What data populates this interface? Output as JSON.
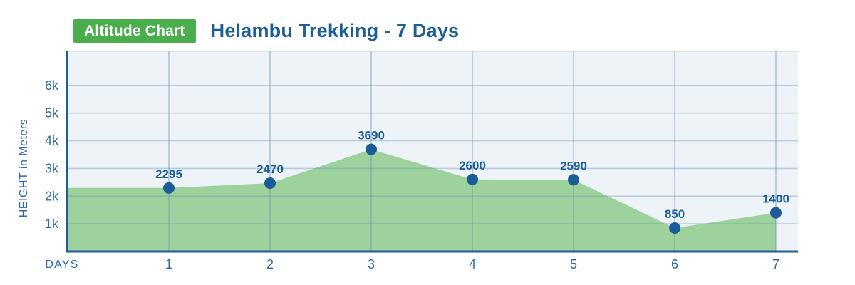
{
  "header": {
    "badge": "Altitude Chart",
    "title": "Helambu Trekking - 7 Days"
  },
  "chart_data": {
    "type": "area",
    "x": [
      1,
      2,
      3,
      4,
      5,
      6,
      7
    ],
    "series": [
      {
        "name": "Altitude",
        "values": [
          2295,
          2470,
          3690,
          2600,
          2590,
          850,
          1400
        ]
      }
    ],
    "point_labels": [
      "2295",
      "2470",
      "3690",
      "2600",
      "2590",
      "850",
      "1400"
    ],
    "xticks": [
      "1",
      "2",
      "3",
      "4",
      "5",
      "6",
      "7"
    ],
    "yticks": [
      {
        "value": 1000,
        "label": "1k"
      },
      {
        "value": 2000,
        "label": "2k"
      },
      {
        "value": 3000,
        "label": "3k"
      },
      {
        "value": 4000,
        "label": "4k"
      },
      {
        "value": 5000,
        "label": "5k"
      },
      {
        "value": 6000,
        "label": "6k"
      }
    ],
    "xlabel": "DAYS",
    "ylabel": "HEIGHT in Meters",
    "ylim": [
      0,
      7230
    ],
    "grid": true,
    "legend": false
  },
  "colors": {
    "badge_bg": "#4aae4d",
    "badge_text": "#ffffff",
    "title_blue": "#1c5f98",
    "plot_bg": "#eef3f8",
    "area_green": "#9ed29c",
    "grid_stroke": "#6e94b8",
    "axis_blue": "#1f5f93",
    "point_blue": "#1a5c96",
    "tick_blue": "#2a6da4",
    "value_label_blue": "#1c5f98"
  }
}
